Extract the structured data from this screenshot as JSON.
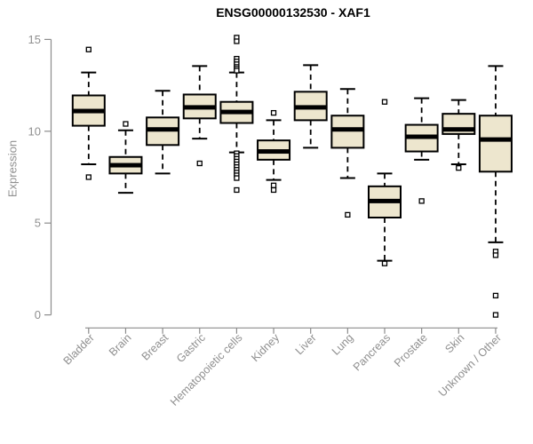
{
  "chart_data": {
    "type": "boxplot",
    "title": "ENSG00000132530 - XAF1",
    "ylabel": "Expression",
    "xlabel": "",
    "ylim": [
      0,
      15
    ],
    "yticks": [
      0,
      5,
      10,
      15
    ],
    "grid": false,
    "legend": "none",
    "box_fill_color": "#EDE6CE",
    "box_border_color": "#000000",
    "median_color": "#000000",
    "outlier_color": "#000000",
    "axis_color": "#8C8C8C",
    "tick_label_color": "#8F8F8F",
    "title_color": "#000000",
    "categories": [
      "Bladder",
      "Brain",
      "Breast",
      "Gastric",
      "Hematopoietic cells",
      "Kidney",
      "Liver",
      "Lung",
      "Pancreas",
      "Prostate",
      "Skin",
      "Unknown / Other"
    ],
    "series": [
      {
        "name": "Bladder",
        "low": 8.2,
        "q1": 10.3,
        "median": 11.1,
        "q3": 11.95,
        "high": 13.2,
        "outliers": [
          14.45,
          7.5
        ]
      },
      {
        "name": "Brain",
        "low": 6.65,
        "q1": 7.7,
        "median": 8.15,
        "q3": 8.6,
        "high": 10.05,
        "outliers": [
          10.4
        ]
      },
      {
        "name": "Breast",
        "low": 7.7,
        "q1": 9.25,
        "median": 10.1,
        "q3": 10.75,
        "high": 12.2,
        "outliers": []
      },
      {
        "name": "Gastric",
        "low": 9.6,
        "q1": 10.7,
        "median": 11.3,
        "q3": 12.0,
        "high": 13.55,
        "outliers": [
          8.25
        ]
      },
      {
        "name": "Hematopoietic cells",
        "low": 8.85,
        "q1": 10.45,
        "median": 11.05,
        "q3": 11.6,
        "high": 13.2,
        "outliers": [
          15.1,
          14.9,
          13.95,
          13.8,
          13.65,
          13.5,
          13.4,
          13.3,
          8.8,
          8.65,
          8.5,
          8.35,
          8.2,
          8.05,
          7.9,
          7.75,
          7.6,
          7.45,
          6.8
        ]
      },
      {
        "name": "Kidney",
        "low": 7.35,
        "q1": 8.45,
        "median": 8.9,
        "q3": 9.5,
        "high": 10.6,
        "outliers": [
          11.0,
          7.05,
          6.8
        ]
      },
      {
        "name": "Liver",
        "low": 9.1,
        "q1": 10.6,
        "median": 11.3,
        "q3": 12.15,
        "high": 13.6,
        "outliers": []
      },
      {
        "name": "Lung",
        "low": 7.45,
        "q1": 9.1,
        "median": 10.1,
        "q3": 10.85,
        "high": 12.3,
        "outliers": [
          5.45
        ]
      },
      {
        "name": "Pancreas",
        "low": 2.95,
        "q1": 5.3,
        "median": 6.2,
        "q3": 7.0,
        "high": 7.7,
        "outliers": [
          11.6,
          2.8
        ]
      },
      {
        "name": "Prostate",
        "low": 8.45,
        "q1": 8.9,
        "median": 9.7,
        "q3": 10.35,
        "high": 11.8,
        "outliers": [
          6.2
        ]
      },
      {
        "name": "Skin",
        "low": 8.2,
        "q1": 9.85,
        "median": 10.1,
        "q3": 10.95,
        "high": 11.7,
        "outliers": [
          8.0
        ]
      },
      {
        "name": "Unknown / Other",
        "low": 3.95,
        "q1": 7.8,
        "median": 9.55,
        "q3": 10.85,
        "high": 13.55,
        "outliers": [
          3.45,
          3.25,
          1.05,
          0.0
        ]
      }
    ]
  }
}
